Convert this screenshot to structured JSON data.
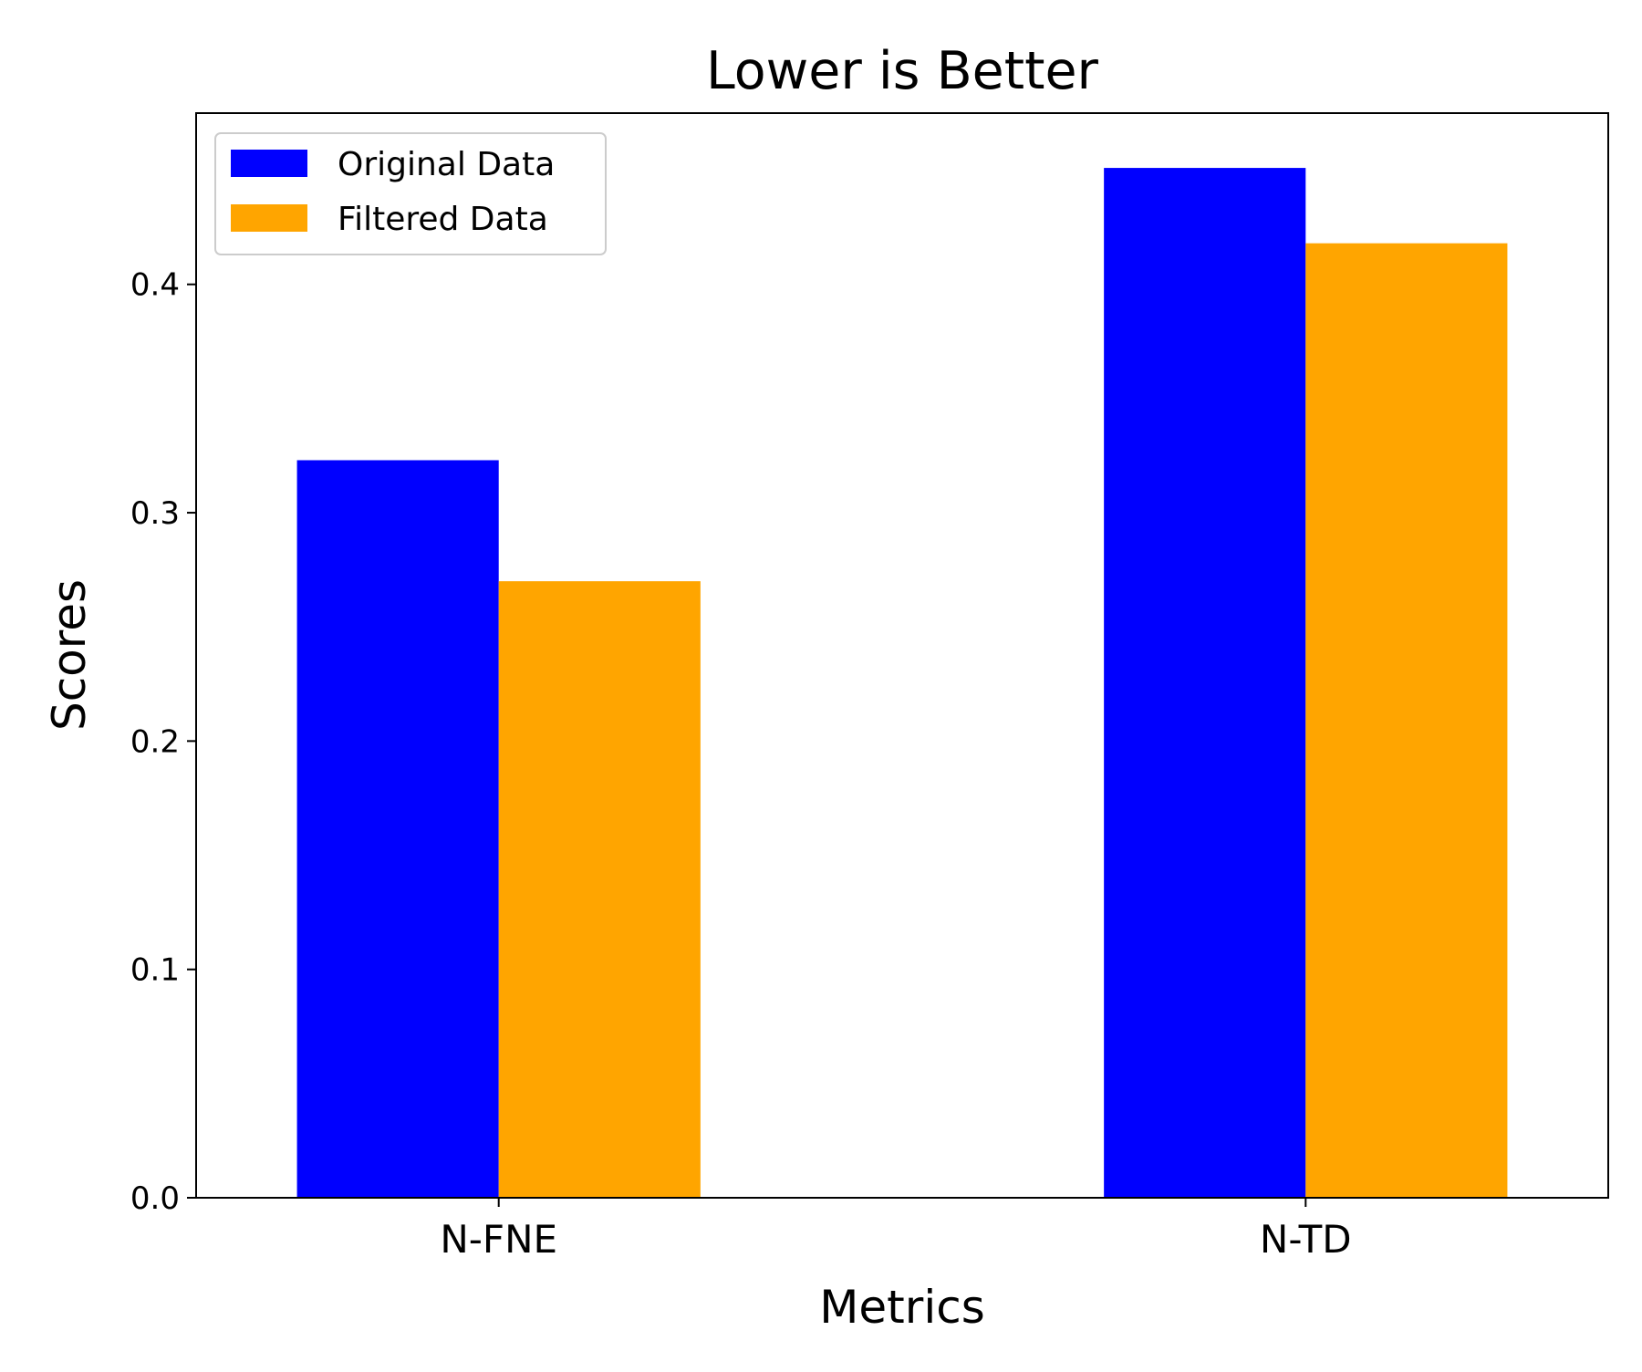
{
  "chart_data": {
    "type": "bar",
    "title": "Lower is Better",
    "xlabel": "Metrics",
    "ylabel": "Scores",
    "categories": [
      "N-FNE",
      "N-TD"
    ],
    "series": [
      {
        "name": "Original Data",
        "color": "#0000ff",
        "values": [
          0.323,
          0.451
        ]
      },
      {
        "name": "Filtered Data",
        "color": "#ffa500",
        "values": [
          0.27,
          0.418
        ]
      }
    ],
    "ylim": [
      0,
      0.475
    ],
    "yticks": [
      {
        "value": 0.0,
        "label": "0.0"
      },
      {
        "value": 0.1,
        "label": "0.1"
      },
      {
        "value": 0.2,
        "label": "0.2"
      },
      {
        "value": 0.3,
        "label": "0.3"
      },
      {
        "value": 0.4,
        "label": "0.4"
      }
    ],
    "grid": false,
    "legend_position": "top-left"
  }
}
